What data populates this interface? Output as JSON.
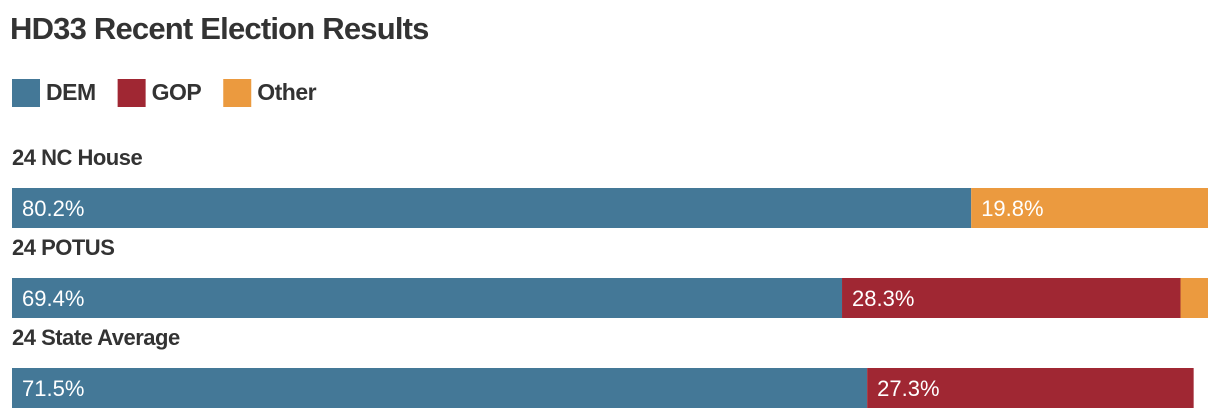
{
  "chart_data": {
    "type": "stacked-bar",
    "title": "HD33 Recent Election Results",
    "categories": [
      "24 NC House",
      "24 POTUS",
      "24 State Average"
    ],
    "series": [
      {
        "name": "DEM",
        "color": "#447897",
        "values": [
          80.2,
          69.4,
          71.5
        ],
        "value_labels": [
          "80.2%",
          "69.4%",
          "71.5%"
        ]
      },
      {
        "name": "GOP",
        "color": "#a02733",
        "values": [
          null,
          28.3,
          27.3
        ],
        "value_labels": [
          null,
          "28.3%",
          "27.3%"
        ]
      },
      {
        "name": "Other",
        "color": "#eb9a3f",
        "values": [
          19.8,
          2.3,
          null
        ],
        "value_labels": [
          "19.8%",
          null,
          null
        ]
      }
    ],
    "xlim": [
      0,
      100
    ]
  }
}
